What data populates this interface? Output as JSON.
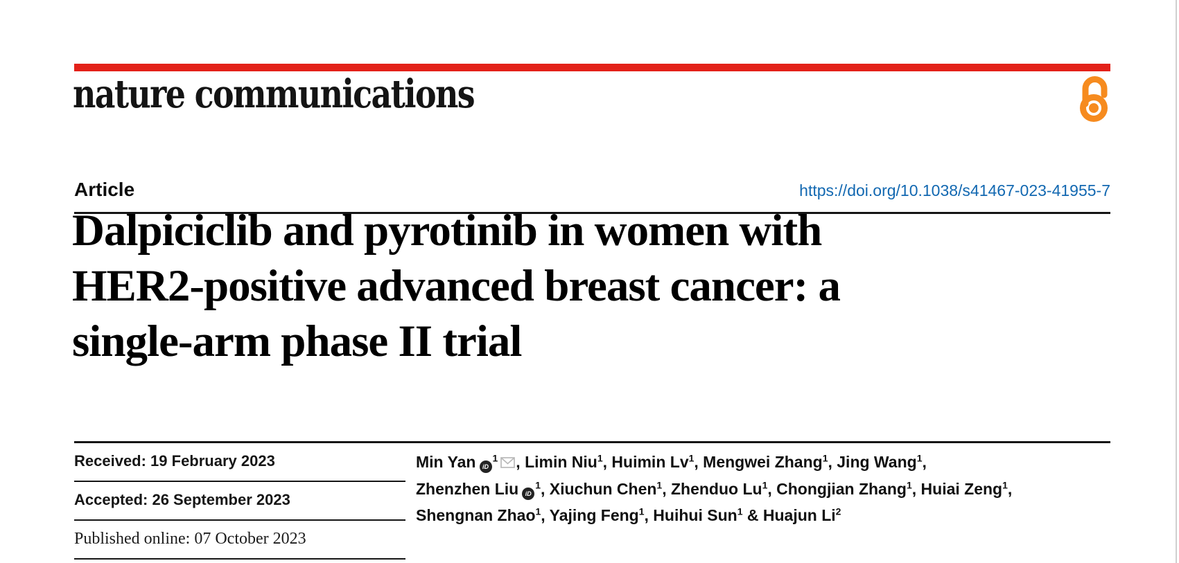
{
  "page": {
    "brand": "nature communications",
    "article_label": "Article",
    "doi": "https://doi.org/10.1038/s41467-023-41955-7",
    "title_lines": [
      "Dalpiciclib and pyrotinib in women with",
      "HER2-positive advanced breast cancer: a",
      "single-arm phase II trial"
    ]
  },
  "dates": [
    "Received: 19 February 2023",
    "Accepted: 26 September 2023",
    "Published online: 07 October 2023"
  ],
  "authors": {
    "lines": [
      [
        {
          "t": "Min Yan"
        },
        {
          "icon": "orcid"
        },
        {
          "sup": "1"
        },
        {
          "icon": "envelope"
        },
        {
          "t": ", Limin Niu"
        },
        {
          "sup": "1"
        },
        {
          "t": ", Huimin Lv"
        },
        {
          "sup": "1"
        },
        {
          "t": ", Mengwei Zhang"
        },
        {
          "sup": "1"
        },
        {
          "t": ", Jing Wang"
        },
        {
          "sup": "1"
        },
        {
          "t": ","
        }
      ],
      [
        {
          "t": "Zhenzhen Liu"
        },
        {
          "icon": "orcid"
        },
        {
          "sup": "1"
        },
        {
          "t": ", Xiuchun Chen"
        },
        {
          "sup": "1"
        },
        {
          "t": ", Zhenduo Lu"
        },
        {
          "sup": "1"
        },
        {
          "t": ", Chongjian Zhang"
        },
        {
          "sup": "1"
        },
        {
          "t": ", Huiai Zeng"
        },
        {
          "sup": "1"
        },
        {
          "t": ","
        }
      ],
      [
        {
          "t": "Shengnan Zhao"
        },
        {
          "sup": "1"
        },
        {
          "t": ", Yajing Feng"
        },
        {
          "sup": "1"
        },
        {
          "t": ", Huihui Sun"
        },
        {
          "sup": "1"
        },
        {
          "t": " & Huajun Li"
        },
        {
          "sup": "2"
        }
      ]
    ]
  },
  "icons": {
    "open_access": "open-access-padlock",
    "orcid": "orcid-id-badge",
    "envelope": "email-envelope"
  },
  "colors": {
    "brand_red": "#e32119",
    "doi_blue": "#1268b1",
    "open_access_orange": "#f68b1f",
    "rule_black": "#151515"
  }
}
